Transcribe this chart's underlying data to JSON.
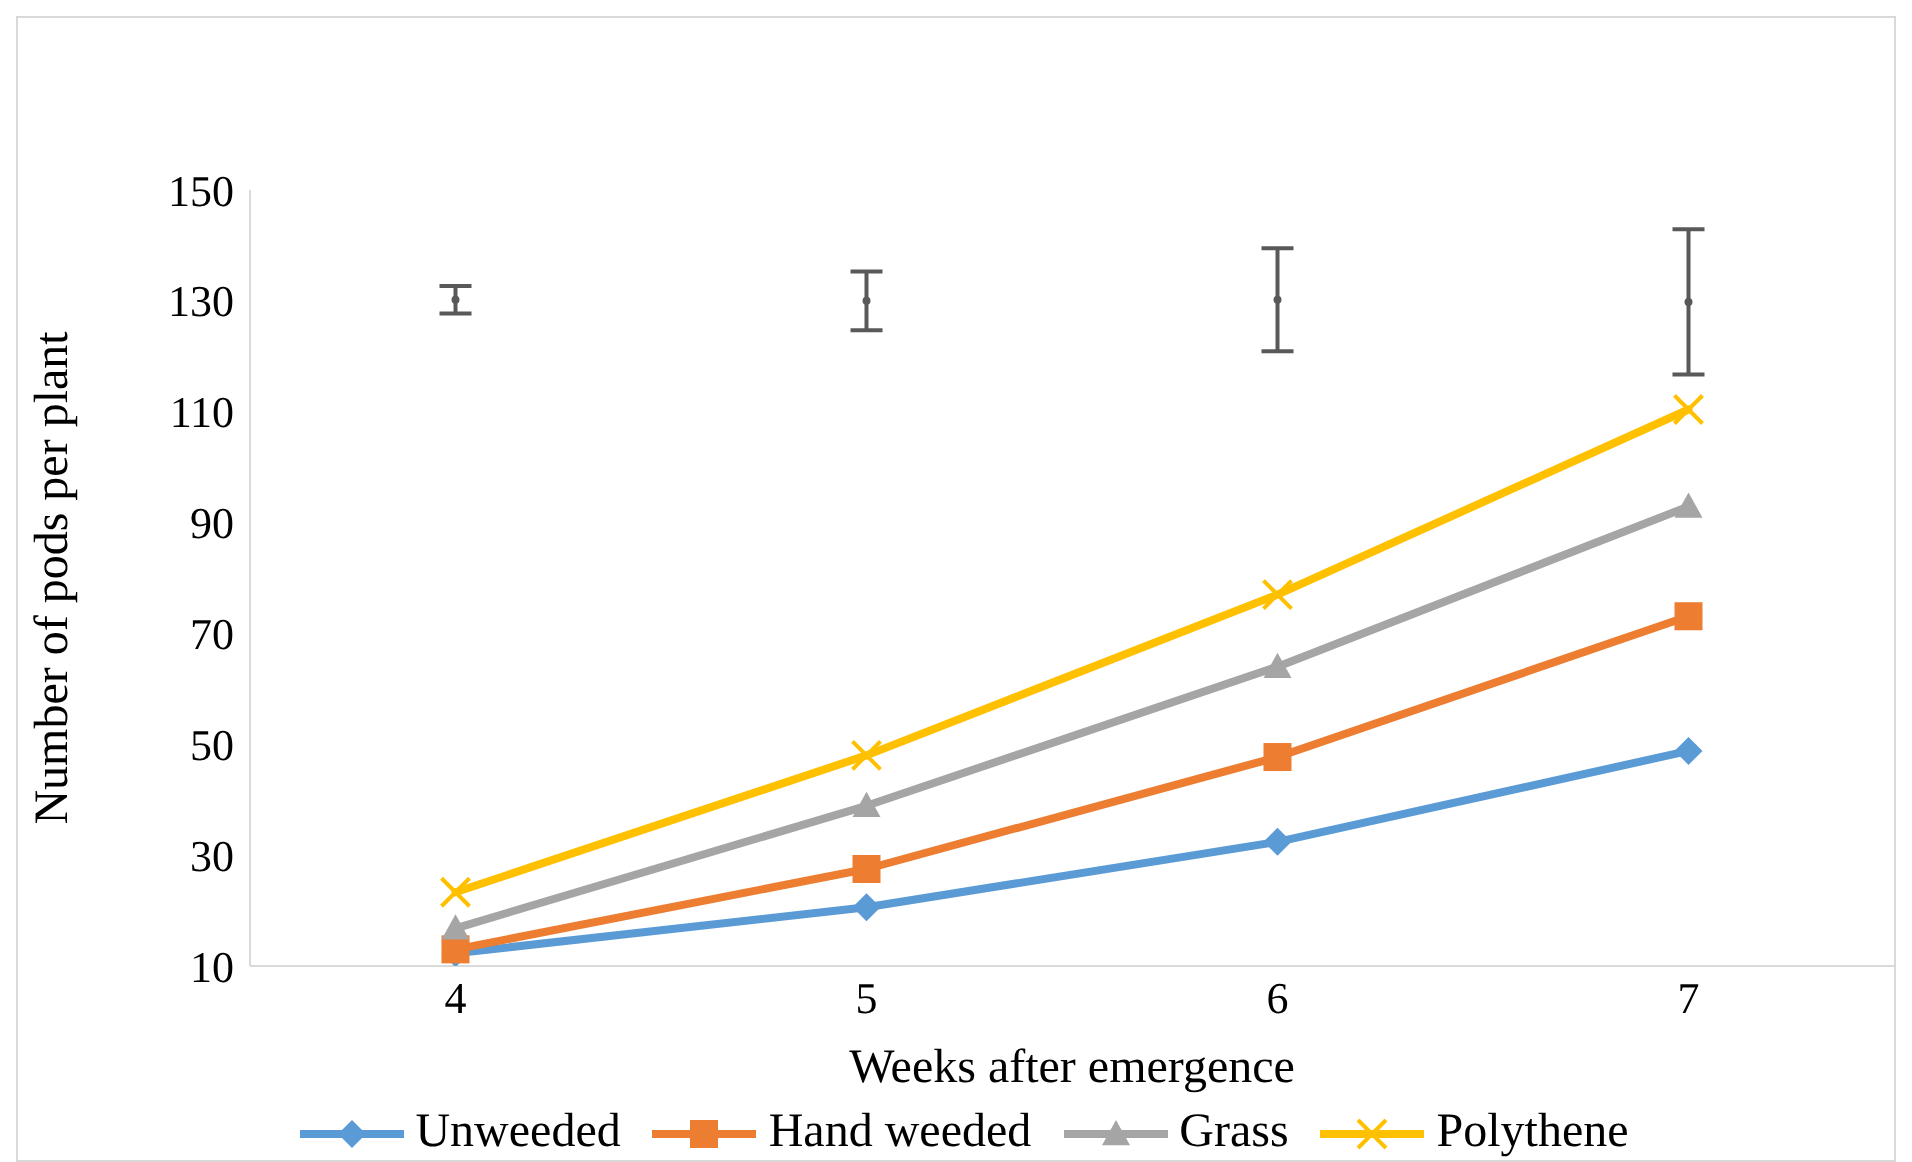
{
  "chart_data": {
    "type": "line",
    "xlabel": "Weeks after emergence",
    "ylabel": "Number of pods per plant",
    "categories": [
      "4",
      "5",
      "6",
      "7"
    ],
    "ylim": [
      10,
      150
    ],
    "yticks": [
      10,
      30,
      50,
      70,
      90,
      110,
      130,
      150
    ],
    "legend": "bottom",
    "line_style": "solid",
    "series": [
      {
        "name": "Unweeded",
        "color": "#5b9bd5",
        "marker": "diamond",
        "values": [
          12.3,
          20.6,
          32.4,
          48.8
        ]
      },
      {
        "name": "Hand weeded",
        "color": "#ed7d31",
        "marker": "square",
        "values": [
          13,
          27.5,
          47.7,
          73.1
        ]
      },
      {
        "name": "Grass",
        "color": "#a5a5a5",
        "marker": "triangle",
        "values": [
          16.8,
          38.9,
          64,
          92.9
        ]
      },
      {
        "name": "Polythene",
        "color": "#ffc000",
        "marker": "cross",
        "values": [
          23.3,
          48,
          77,
          110.4
        ]
      },
      {
        "type": "scatter",
        "color": "#595959",
        "marker": "circle",
        "values": [
          130.2,
          130,
          130.2,
          129.8
        ],
        "errors": [
          [
            127.7,
            132.7
          ],
          [
            124.7,
            135.3
          ],
          [
            120.9,
            139.5
          ],
          [
            116.7,
            142.9
          ]
        ]
      }
    ]
  }
}
